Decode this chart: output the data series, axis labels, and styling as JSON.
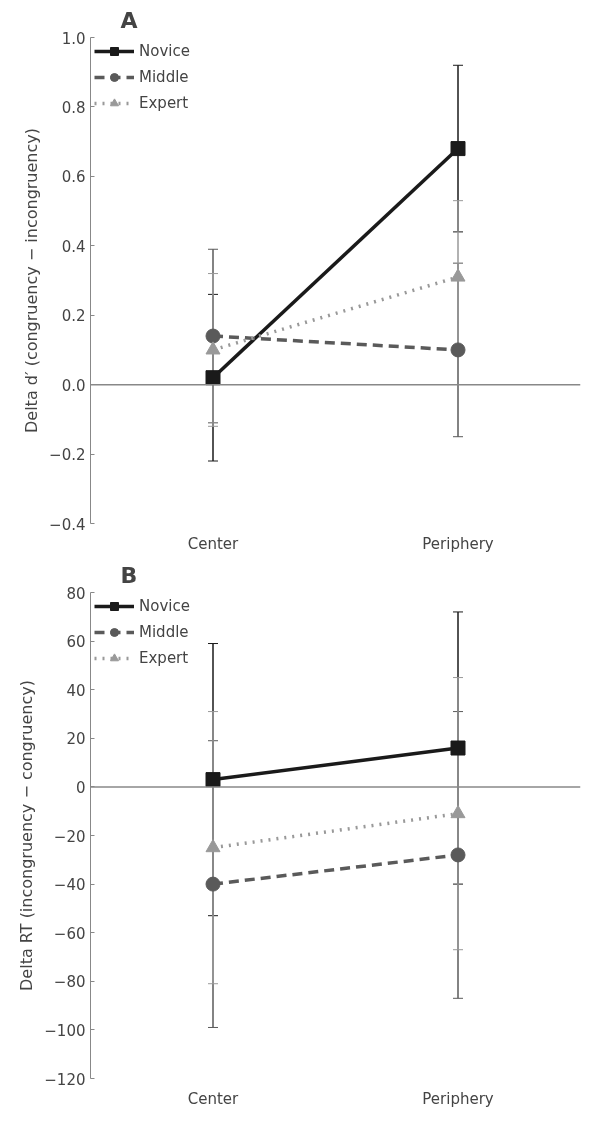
{
  "chart_data": [
    {
      "type": "line",
      "title": "A",
      "ylabel": "Delta d′ (congruency − incongruency)",
      "categories": [
        "Center",
        "Periphery"
      ],
      "ylim": [
        -0.4,
        1.0
      ],
      "yticks": [
        {
          "value": -0.4,
          "label": "−0.4"
        },
        {
          "value": -0.2,
          "label": "−0.2"
        },
        {
          "value": 0,
          "label": "0.0"
        },
        {
          "value": 0.2,
          "label": "0.2"
        },
        {
          "value": 0.4,
          "label": "0.4"
        },
        {
          "value": 0.6,
          "label": "0.6"
        },
        {
          "value": 0.8,
          "label": "0.8"
        },
        {
          "value": 1.0,
          "label": "1.0"
        }
      ],
      "grid": false,
      "legend": "top left",
      "ref_lines": [
        {
          "axis": "y",
          "value": 0
        }
      ],
      "series": [
        {
          "name": "Novice",
          "color": "#1a1a1a",
          "values": [
            0.02,
            0.68
          ],
          "errors": [
            0.24,
            0.24
          ],
          "marker": "square",
          "line_style": "solid"
        },
        {
          "name": "Middle",
          "color": "#5a5a5a",
          "values": [
            0.14,
            0.1
          ],
          "errors": [
            0.25,
            0.25
          ],
          "marker": "circle",
          "line_style": "dashed"
        },
        {
          "name": "Expert",
          "color": "#999999",
          "values": [
            0.1,
            0.31
          ],
          "errors": [
            0.22,
            0.22
          ],
          "marker": "triangle",
          "line_style": "dotted"
        }
      ]
    },
    {
      "type": "line",
      "title": "B",
      "ylabel": "Delta RT (incongruency − congruency)",
      "categories": [
        "Center",
        "Periphery"
      ],
      "ylim": [
        -120,
        80
      ],
      "yticks": [
        {
          "value": -120,
          "label": "−120"
        },
        {
          "value": -100,
          "label": "−100"
        },
        {
          "value": -80,
          "label": "−80"
        },
        {
          "value": -60,
          "label": "−60"
        },
        {
          "value": -40,
          "label": "−40"
        },
        {
          "value": -20,
          "label": "−20"
        },
        0,
        20,
        40,
        60,
        80
      ],
      "grid": false,
      "legend": "top left",
      "ref_lines": [
        {
          "axis": "y",
          "value": 0
        }
      ],
      "series": [
        {
          "name": "Novice",
          "color": "#1a1a1a",
          "values": [
            3,
            16
          ],
          "errors": [
            56,
            56
          ],
          "marker": "square",
          "line_style": "solid"
        },
        {
          "name": "Middle",
          "color": "#5a5a5a",
          "values": [
            -40,
            -28
          ],
          "errors": [
            59,
            59
          ],
          "marker": "circle",
          "line_style": "dashed"
        },
        {
          "name": "Expert",
          "color": "#999999",
          "values": [
            -25,
            -11
          ],
          "errors": [
            56,
            56
          ],
          "marker": "triangle",
          "line_style": "dotted"
        }
      ]
    }
  ]
}
